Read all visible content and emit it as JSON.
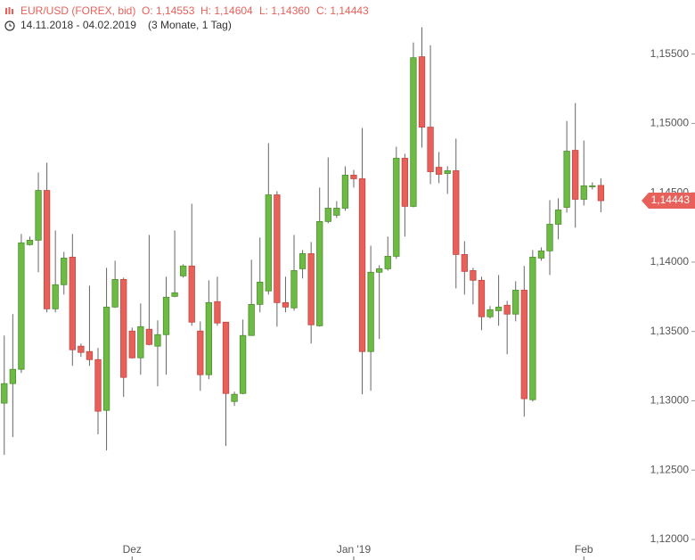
{
  "chart_data": {
    "type": "candlestick",
    "instrument": "EUR/USD (FOREX, bid)",
    "ohlc_labels": [
      "O: 1,14553",
      "H: 1,14604",
      "L: 1,14360",
      "C: 1,14443"
    ],
    "date_range": "14.11.2018 - 04.02.2019",
    "period": "(3 Monate, 1 Tag)",
    "up_color": "#6dbb45",
    "down_color": "#e8605a",
    "open": [
      1.12983,
      1.13124,
      1.13227,
      1.14126,
      1.14158,
      1.14517,
      1.13663,
      1.13837,
      1.14036,
      1.13394,
      1.13355,
      1.13297,
      1.12931,
      1.13676,
      1.13875,
      1.13503,
      1.1331,
      1.13516,
      1.13394,
      1.13477,
      1.13753,
      1.13901,
      1.13972,
      1.13503,
      1.13188,
      1.13715,
      1.13567,
      1.12995,
      1.13053,
      1.13471,
      1.13695,
      1.13792,
      1.14485,
      1.13708,
      1.1367,
      1.13952,
      1.14061,
      1.13541,
      1.14293,
      1.14338,
      1.14389,
      1.14627,
      1.14601,
      1.13355,
      1.13927,
      1.13952,
      1.14042,
      1.14749,
      1.14402,
      1.15481,
      1.14973,
      1.14684,
      1.14639,
      1.14659,
      1.14055,
      1.13939,
      1.13869,
      1.13606,
      1.1365,
      1.13689,
      1.13625,
      1.13798,
      1.13008,
      1.14029,
      1.14081,
      1.14273,
      1.14395,
      1.14806,
      1.14453,
      1.14543,
      1.14553
    ],
    "high": [
      1.13471,
      1.13625,
      1.14203,
      1.14184,
      1.14646,
      1.14717,
      1.14228,
      1.14074,
      1.14203,
      1.13413,
      1.1383,
      1.13381,
      1.13959,
      1.1401,
      1.13888,
      1.13528,
      1.13702,
      1.14196,
      1.1358,
      1.13895,
      1.14228,
      1.13984,
      1.14421,
      1.13573,
      1.13869,
      1.13895,
      1.13567,
      1.13066,
      1.13586,
      1.14017,
      1.14177,
      1.14858,
      1.14511,
      1.13895,
      1.14196,
      1.14087,
      1.14145,
      1.14537,
      1.14755,
      1.1444,
      1.14691,
      1.14665,
      1.14967,
      1.14119,
      1.13978,
      1.14184,
      1.14832,
      1.14781,
      1.15584,
      1.15693,
      1.15564,
      1.14794,
      1.14691,
      1.1489,
      1.14151,
      1.13959,
      1.13895,
      1.13683,
      1.13907,
      1.13721,
      1.13862,
      1.13972,
      1.14087,
      1.14106,
      1.14447,
      1.1446,
      1.15018,
      1.15147,
      1.14877,
      1.14575,
      1.14604
    ],
    "low": [
      1.1261,
      1.12739,
      1.13201,
      1.14119,
      1.13927,
      1.13638,
      1.13638,
      1.13766,
      1.13252,
      1.13317,
      1.13252,
      1.12758,
      1.12642,
      1.1367,
      1.13028,
      1.13304,
      1.13188,
      1.134,
      1.13105,
      1.13188,
      1.13747,
      1.13888,
      1.13541,
      1.13072,
      1.13156,
      1.13541,
      1.12674,
      1.12963,
      1.13047,
      1.13471,
      1.13638,
      1.13766,
      1.13535,
      1.13638,
      1.1365,
      1.13882,
      1.13413,
      1.13535,
      1.1428,
      1.14318,
      1.1437,
      1.14537,
      1.13047,
      1.13072,
      1.13445,
      1.13939,
      1.14023,
      1.14184,
      1.14395,
      1.14826,
      1.14562,
      1.14569,
      1.14492,
      1.13811,
      1.13766,
      1.13695,
      1.13509,
      1.13593,
      1.13541,
      1.13336,
      1.13573,
      1.12886,
      1.12995,
      1.1401,
      1.13907,
      1.14164,
      1.14357,
      1.14248,
      1.14408,
      1.14524,
      1.1436
    ],
    "close": [
      1.13124,
      1.13227,
      1.14139,
      1.14158,
      1.14517,
      1.13663,
      1.13837,
      1.14029,
      1.13368,
      1.13349,
      1.13297,
      1.12925,
      1.13676,
      1.13875,
      1.13169,
      1.1331,
      1.13535,
      1.13406,
      1.13477,
      1.13747,
      1.13779,
      1.13972,
      1.13567,
      1.13188,
      1.13708,
      1.13561,
      1.13053,
      1.13047,
      1.13471,
      1.13695,
      1.13856,
      1.14485,
      1.13708,
      1.13676,
      1.13939,
      1.14061,
      1.13548,
      1.14293,
      1.14389,
      1.14389,
      1.14627,
      1.14601,
      1.13355,
      1.13927,
      1.13952,
      1.14042,
      1.14749,
      1.14402,
      1.15474,
      1.14973,
      1.14652,
      1.14633,
      1.14659,
      1.14055,
      1.13933,
      1.13869,
      1.13606,
      1.13657,
      1.13676,
      1.13625,
      1.13798,
      1.13015,
      1.14036,
      1.14081,
      1.14273,
      1.14376,
      1.148,
      1.14453,
      1.1455,
      1.1455,
      1.14443
    ],
    "last_price": {
      "value": 1.14443,
      "label": "1,14443"
    },
    "xlim": [
      -0.5,
      75.5
    ],
    "xticks": [
      {
        "value": 15,
        "label": "Dez"
      },
      {
        "value": 41,
        "label": "Jan '19"
      },
      {
        "value": 68,
        "label": "Feb"
      }
    ],
    "ylim": [
      1.12,
      1.1589
    ],
    "yticks": [
      {
        "value": 1.12,
        "label": "1,12000"
      },
      {
        "value": 1.125,
        "label": "1,12500"
      },
      {
        "value": 1.13,
        "label": "1,13000"
      },
      {
        "value": 1.135,
        "label": "1,13500"
      },
      {
        "value": 1.14,
        "label": "1,14000"
      },
      {
        "value": 1.145,
        "label": "1,14500"
      },
      {
        "value": 1.15,
        "label": "1,15000"
      },
      {
        "value": 1.155,
        "label": "1,15500"
      }
    ]
  }
}
